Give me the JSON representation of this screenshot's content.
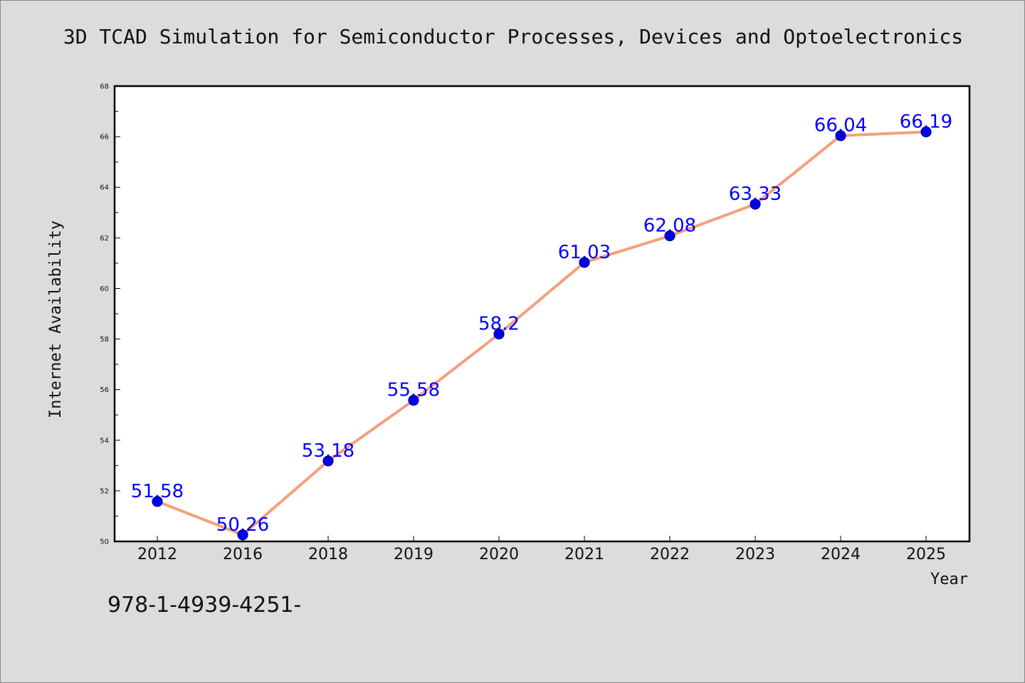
{
  "chart_data": {
    "type": "line",
    "title": "3D TCAD Simulation for Semiconductor Processes, Devices and Optoelectronics",
    "xlabel": "Year",
    "ylabel": "Internet Availability",
    "categories": [
      "2012",
      "2016",
      "2018",
      "2019",
      "2020",
      "2021",
      "2022",
      "2023",
      "2024",
      "2025"
    ],
    "series": [
      {
        "values": [
          51.58,
          50.26,
          53.18,
          55.58,
          58.2,
          61.03,
          62.08,
          63.33,
          66.04,
          66.19
        ],
        "labels": [
          "51.58",
          "50.26",
          "53.18",
          "55.58",
          "58.2",
          "61.03",
          "62.08",
          "63.33",
          "66.04",
          "66.19"
        ]
      }
    ],
    "ylim": [
      50,
      68
    ],
    "yticks": [
      50,
      52,
      54,
      56,
      58,
      60,
      62,
      64,
      66,
      68
    ],
    "grid": false,
    "legend": "none",
    "colors": {
      "line": "#f4a07c",
      "marker": "#0000ee",
      "marker_edge": "#00008b",
      "data_label": "#0000ff",
      "plot_background": "#ffffff",
      "page_background": "#dcdcdc"
    }
  },
  "footnote": "978-1-4939-4251-"
}
